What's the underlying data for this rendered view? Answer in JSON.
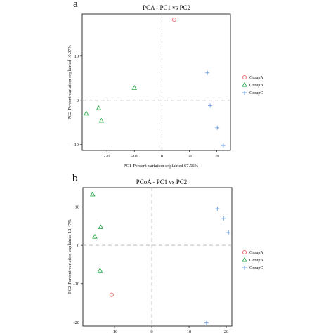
{
  "colors": {
    "GroupA": "#e8706a",
    "GroupB": "#2aa84a",
    "GroupC": "#6a9ee6"
  },
  "legend": [
    {
      "name": "GroupA",
      "symbol": "circle"
    },
    {
      "name": "GroupB",
      "symbol": "triangle"
    },
    {
      "name": "GroupC",
      "symbol": "plus"
    }
  ],
  "panels": [
    {
      "letter": "a",
      "title": "PCA - PC1 vs PC2",
      "xlabel": "PC1-Percent variation explained 67.56%",
      "ylabel": "PC2-Percent variation explained 10.97%"
    },
    {
      "letter": "b",
      "title": "PCoA - PC1 vs PC2",
      "xlabel": "",
      "ylabel": "PC2-Percent variation explained 13.47%"
    }
  ],
  "chart_data": [
    {
      "type": "scatter",
      "title": "PCA - PC1 vs PC2",
      "xlabel": "PC1-Percent variation explained 67.56%",
      "ylabel": "PC2-Percent variation explained 10.97%",
      "xlim": [
        -29,
        25
      ],
      "ylim": [
        -11.3,
        19.5
      ],
      "xticks": [
        -20,
        -10,
        0,
        10,
        20
      ],
      "xtick_labels": [
        "-20",
        "-10",
        "0",
        "10",
        "20"
      ],
      "yticks": [
        -10,
        0,
        10
      ],
      "ytick_labels": [
        "-10",
        "0",
        "10"
      ],
      "zero_lines": true,
      "legend_position": "right",
      "series": [
        {
          "name": "GroupA",
          "marker": "circle",
          "x": [
            4.5
          ],
          "y": [
            18.2
          ]
        },
        {
          "name": "GroupB",
          "marker": "triangle",
          "x": [
            -10.0,
            -23.0,
            -27.5,
            -22.0
          ],
          "y": [
            2.8,
            -1.8,
            -3.0,
            -4.6
          ]
        },
        {
          "name": "GroupC",
          "marker": "plus",
          "x": [
            16.6,
            17.6,
            20.2,
            22.4
          ],
          "y": [
            6.2,
            -1.2,
            -6.2,
            -10.2
          ]
        }
      ]
    },
    {
      "type": "scatter",
      "title": "PCoA - PC1 vs PC2",
      "xlabel": "",
      "ylabel": "PC2-Percent variation explained 13.47%",
      "xlim": [
        -18.5,
        21.5
      ],
      "ylim": [
        -21.0,
        15.0
      ],
      "xticks": [
        -10,
        0,
        10,
        20
      ],
      "xtick_labels": [
        "-10",
        "0",
        "10",
        "20"
      ],
      "yticks": [
        -20,
        -10,
        0,
        10
      ],
      "ytick_labels": [
        "-20",
        "-10",
        "0",
        "10"
      ],
      "zero_lines": true,
      "legend_position": "right",
      "series": [
        {
          "name": "GroupA",
          "marker": "circle",
          "x": [
            -10.8
          ],
          "y": [
            -12.9
          ]
        },
        {
          "name": "GroupB",
          "marker": "triangle",
          "x": [
            -15.9,
            -13.7,
            -15.3,
            -13.9
          ],
          "y": [
            13.2,
            4.7,
            2.2,
            -6.6
          ]
        },
        {
          "name": "GroupC",
          "marker": "plus",
          "x": [
            17.6,
            19.3,
            20.6,
            14.7
          ],
          "y": [
            9.5,
            7.0,
            3.3,
            -20.2
          ]
        }
      ]
    }
  ]
}
